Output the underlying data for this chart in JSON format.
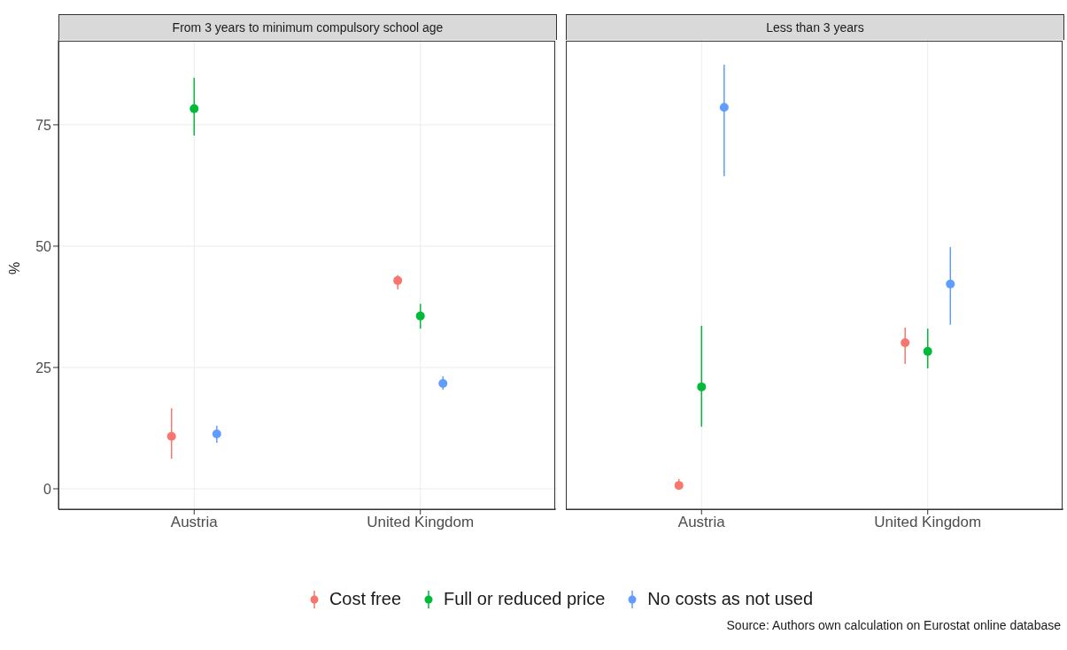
{
  "chart_data": [
    {
      "type": "scatter",
      "title": "From 3 years to minimum compulsory school age",
      "ylabel": "%",
      "categories": [
        "Austria",
        "United Kingdom"
      ],
      "ylim": [
        -4.2,
        92.5
      ],
      "yticks": [
        0,
        25,
        50,
        75
      ],
      "grid": true,
      "legend": "bottom",
      "marker": "circle",
      "series": [
        {
          "name": "Cost free",
          "color": "#f8766d",
          "values": [
            10.8,
            42.9
          ],
          "errors": [
            [
              6.2,
              16.6
            ],
            [
              41.1,
              44.0
            ]
          ]
        },
        {
          "name": "Full or reduced price",
          "color": "#00ba38",
          "values": [
            78.3,
            35.6
          ],
          "errors": [
            [
              72.8,
              84.7
            ],
            [
              33.0,
              38.1
            ]
          ]
        },
        {
          "name": "No costs as not used",
          "color": "#619cff",
          "values": [
            11.3,
            21.7
          ],
          "errors": [
            [
              9.5,
              13.0
            ],
            [
              20.4,
              23.2
            ]
          ]
        }
      ]
    },
    {
      "type": "scatter",
      "title": "Less than 3 years",
      "categories": [
        "Austria",
        "United Kingdom"
      ],
      "ylim": [
        -4.2,
        92.5
      ],
      "yticks": [
        0,
        25,
        50,
        75
      ],
      "grid": true,
      "marker": "circle",
      "tick_labels": "x",
      "annotations": [
        "Source: Authors own calculation on Eurostat online database"
      ],
      "series": [
        {
          "color": "#f8766d",
          "values": [
            0.7,
            30.1
          ],
          "errors": [
            [
              0,
              2.0
            ],
            [
              25.7,
              33.2
            ]
          ]
        },
        {
          "color": "#00ba38",
          "values": [
            21.0,
            28.3
          ],
          "errors": [
            [
              12.8,
              33.6
            ],
            [
              24.8,
              33.0
            ]
          ]
        },
        {
          "color": "#619cff",
          "values": [
            78.6,
            42.2
          ],
          "errors": [
            [
              64.4,
              87.4
            ],
            [
              33.8,
              49.8
            ]
          ]
        }
      ]
    }
  ]
}
